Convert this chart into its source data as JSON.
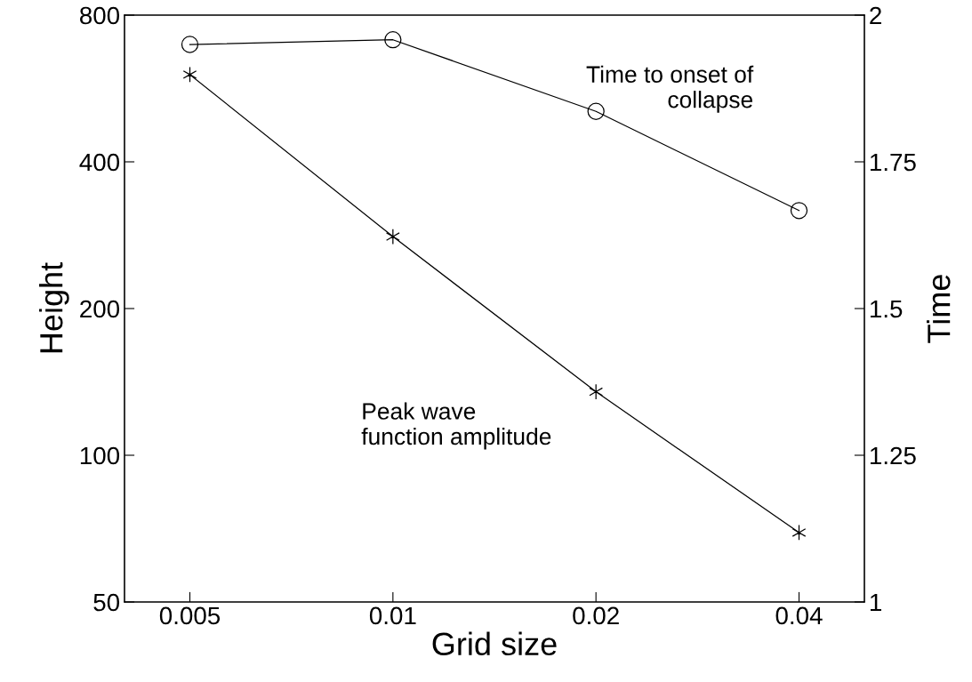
{
  "chart_data": {
    "type": "line",
    "xlabel": "Grid size",
    "ylabel": "Height",
    "y2label": "Time",
    "log": "xy",
    "x": [
      0.005,
      0.01,
      0.02,
      0.04
    ],
    "series": [
      {
        "name": "Peak wave\nfunction amplitude",
        "color": "#000000",
        "marker": "cross",
        "values": [
          604,
          281,
          135,
          69.4
        ]
      },
      {
        "name": "Time to onset of\ncollapse",
        "color": "#000000",
        "marker": "circle",
        "axis": "y2",
        "values": [
          1.95,
          1.958,
          1.836,
          1.667
        ]
      }
    ],
    "xlim": [
      0.004,
      0.05
    ],
    "xticks": [
      0.005,
      0.01,
      0.02,
      0.04
    ],
    "ylim": [
      50,
      800
    ],
    "yticks": [
      50,
      100,
      200,
      400,
      800
    ],
    "y2lim": [
      1,
      2
    ],
    "y2ticks": [
      1,
      1.25,
      1.5,
      1.75,
      2
    ],
    "grid": false,
    "line_style": "solid"
  }
}
